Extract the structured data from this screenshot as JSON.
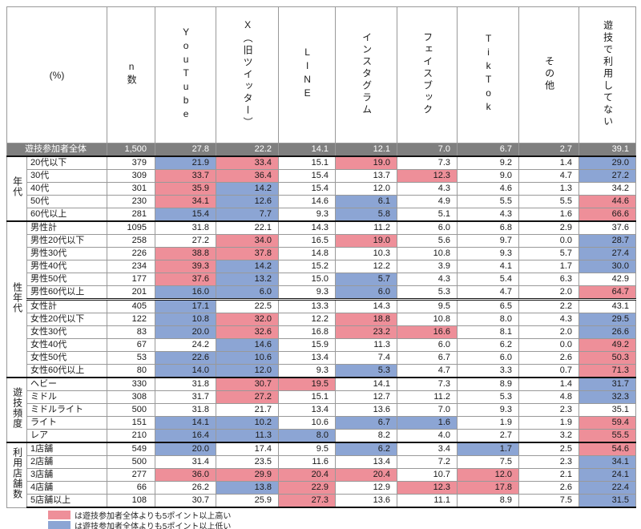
{
  "colors": {
    "higher_highlight": "#ee8f99",
    "lower_highlight": "#8ca5d4",
    "overall_row_bg": "#7f7f7f",
    "grid_line": "#999999",
    "section_line": "#111111"
  },
  "chart_data": {
    "type": "table",
    "unit_label": "(%)",
    "n_header": "n数",
    "columns": [
      "YouTube",
      "X（旧ツイッター）",
      "LINE",
      "インスタグラム",
      "フェイスブック",
      "TikTok",
      "その他",
      "遊技で利用してない"
    ],
    "overall": {
      "label": "遊技参加者全体",
      "n": "1,500",
      "values": [
        27.8,
        22.2,
        14.1,
        12.1,
        7.0,
        6.7,
        2.7,
        39.1
      ]
    },
    "sections": [
      {
        "group": "年代",
        "rows": [
          {
            "label": "20代以下",
            "n": "379",
            "values": [
              21.9,
              33.4,
              15.1,
              19.0,
              7.3,
              9.2,
              1.4,
              29.0
            ],
            "hl": [
              "l",
              "h",
              "",
              "h",
              "",
              "",
              "",
              "l"
            ]
          },
          {
            "label": "30代",
            "n": "309",
            "values": [
              33.7,
              36.4,
              15.4,
              13.7,
              12.3,
              9.0,
              4.7,
              27.2
            ],
            "hl": [
              "h",
              "h",
              "",
              "",
              "h",
              "",
              "",
              "l"
            ]
          },
          {
            "label": "40代",
            "n": "301",
            "values": [
              35.9,
              14.2,
              15.4,
              12.0,
              4.3,
              4.6,
              1.3,
              34.2
            ],
            "hl": [
              "h",
              "l",
              "",
              "",
              "",
              "",
              "",
              ""
            ]
          },
          {
            "label": "50代",
            "n": "230",
            "values": [
              34.1,
              12.6,
              14.6,
              6.1,
              4.9,
              5.5,
              5.5,
              44.6
            ],
            "hl": [
              "h",
              "l",
              "",
              "l",
              "",
              "",
              "",
              "h"
            ]
          },
          {
            "label": "60代以上",
            "n": "281",
            "values": [
              15.4,
              7.7,
              9.3,
              5.8,
              5.1,
              4.3,
              1.6,
              66.6
            ],
            "hl": [
              "l",
              "l",
              "",
              "l",
              "",
              "",
              "",
              "h"
            ]
          }
        ]
      },
      {
        "group": "性年代",
        "divider_before": 6,
        "rows": [
          {
            "label": "男性計",
            "n": "1095",
            "values": [
              31.8,
              22.1,
              14.3,
              11.2,
              6.0,
              6.8,
              2.9,
              37.6
            ],
            "hl": [
              "",
              "",
              "",
              "",
              "",
              "",
              "",
              ""
            ]
          },
          {
            "label": "男性20代以下",
            "n": "258",
            "values": [
              27.2,
              34.0,
              16.5,
              19.0,
              5.6,
              9.7,
              0.0,
              28.7
            ],
            "hl": [
              "",
              "h",
              "",
              "h",
              "",
              "",
              "",
              "l"
            ]
          },
          {
            "label": "男性30代",
            "n": "226",
            "values": [
              38.8,
              37.8,
              14.8,
              10.3,
              10.8,
              9.3,
              5.7,
              27.4
            ],
            "hl": [
              "h",
              "h",
              "",
              "",
              "",
              "",
              "",
              "l"
            ]
          },
          {
            "label": "男性40代",
            "n": "234",
            "values": [
              39.3,
              14.2,
              15.2,
              12.2,
              3.9,
              4.1,
              1.7,
              30.0
            ],
            "hl": [
              "h",
              "l",
              "",
              "",
              "",
              "",
              "",
              "l"
            ]
          },
          {
            "label": "男性50代",
            "n": "177",
            "values": [
              37.6,
              13.2,
              15.0,
              5.7,
              4.3,
              5.4,
              6.3,
              42.9
            ],
            "hl": [
              "h",
              "l",
              "",
              "l",
              "",
              "",
              "",
              ""
            ]
          },
          {
            "label": "男性60代以上",
            "n": "201",
            "values": [
              16.0,
              6.0,
              9.3,
              6.0,
              5.3,
              4.7,
              2.0,
              64.7
            ],
            "hl": [
              "l",
              "l",
              "",
              "l",
              "",
              "",
              "",
              "h"
            ]
          },
          {
            "label": "女性計",
            "n": "405",
            "values": [
              17.1,
              22.5,
              13.3,
              14.3,
              9.5,
              6.5,
              2.2,
              43.1
            ],
            "hl": [
              "l",
              "",
              "",
              "",
              "",
              "",
              "",
              ""
            ]
          },
          {
            "label": "女性20代以下",
            "n": "122",
            "values": [
              10.8,
              32.0,
              12.2,
              18.8,
              10.8,
              8.0,
              4.3,
              29.5
            ],
            "hl": [
              "l",
              "h",
              "",
              "h",
              "",
              "",
              "",
              "l"
            ]
          },
          {
            "label": "女性30代",
            "n": "83",
            "values": [
              20.0,
              32.6,
              16.8,
              23.2,
              16.6,
              8.1,
              2.0,
              26.6
            ],
            "hl": [
              "l",
              "h",
              "",
              "h",
              "h",
              "",
              "",
              "l"
            ]
          },
          {
            "label": "女性40代",
            "n": "67",
            "values": [
              24.2,
              14.6,
              15.9,
              11.3,
              6.0,
              6.2,
              0.0,
              49.2
            ],
            "hl": [
              "",
              "l",
              "",
              "",
              "",
              "",
              "",
              "h"
            ]
          },
          {
            "label": "女性50代",
            "n": "53",
            "values": [
              22.6,
              10.6,
              13.4,
              7.4,
              6.7,
              6.0,
              2.6,
              50.3
            ],
            "hl": [
              "l",
              "l",
              "",
              "",
              "",
              "",
              "",
              "h"
            ]
          },
          {
            "label": "女性60代以上",
            "n": "80",
            "values": [
              14.0,
              12.0,
              9.3,
              5.3,
              4.7,
              3.3,
              0.7,
              71.3
            ],
            "hl": [
              "l",
              "l",
              "",
              "l",
              "",
              "",
              "",
              "h"
            ]
          }
        ]
      },
      {
        "group": "遊技頻度",
        "rows": [
          {
            "label": "ヘビー",
            "n": "330",
            "values": [
              31.8,
              30.7,
              19.5,
              14.1,
              7.3,
              8.9,
              1.4,
              31.7
            ],
            "hl": [
              "",
              "h",
              "h",
              "",
              "",
              "",
              "",
              "l"
            ]
          },
          {
            "label": "ミドル",
            "n": "308",
            "values": [
              31.7,
              27.2,
              15.1,
              12.7,
              11.2,
              5.3,
              4.8,
              32.3
            ],
            "hl": [
              "",
              "h",
              "",
              "",
              "",
              "",
              "",
              "l"
            ]
          },
          {
            "label": "ミドルライト",
            "n": "500",
            "values": [
              31.8,
              21.7,
              13.4,
              13.6,
              7.0,
              9.3,
              2.3,
              35.1
            ],
            "hl": [
              "",
              "",
              "",
              "",
              "",
              "",
              "",
              ""
            ]
          },
          {
            "label": "ライト",
            "n": "151",
            "values": [
              14.1,
              10.2,
              10.6,
              6.7,
              1.6,
              1.9,
              1.9,
              59.4
            ],
            "hl": [
              "l",
              "l",
              "",
              "l",
              "l",
              "",
              "",
              "h"
            ]
          },
          {
            "label": "レア",
            "n": "210",
            "values": [
              16.4,
              11.3,
              8.0,
              8.2,
              4.0,
              2.7,
              3.2,
              55.5
            ],
            "hl": [
              "l",
              "l",
              "l",
              "",
              "",
              "",
              "",
              "h"
            ]
          }
        ]
      },
      {
        "group": "利用店舗数",
        "rows": [
          {
            "label": "1店舗",
            "n": "549",
            "values": [
              20.0,
              17.4,
              9.5,
              6.2,
              3.4,
              1.7,
              2.5,
              54.6
            ],
            "hl": [
              "l",
              "",
              "",
              "l",
              "",
              "l",
              "",
              "h"
            ]
          },
          {
            "label": "2店舗",
            "n": "500",
            "values": [
              31.4,
              23.5,
              11.6,
              13.4,
              7.2,
              7.5,
              2.3,
              34.1
            ],
            "hl": [
              "",
              "",
              "",
              "",
              "",
              "",
              "",
              "l"
            ]
          },
          {
            "label": "3店舗",
            "n": "277",
            "values": [
              36.0,
              29.9,
              20.4,
              20.4,
              10.7,
              12.0,
              2.1,
              24.1
            ],
            "hl": [
              "h",
              "h",
              "h",
              "h",
              "",
              "h",
              "",
              "l"
            ]
          },
          {
            "label": "4店舗",
            "n": "66",
            "values": [
              26.2,
              13.8,
              22.9,
              12.9,
              12.3,
              17.8,
              2.6,
              22.4
            ],
            "hl": [
              "",
              "l",
              "h",
              "",
              "h",
              "h",
              "",
              "l"
            ]
          },
          {
            "label": "5店舗以上",
            "n": "108",
            "values": [
              30.7,
              25.9,
              27.3,
              13.6,
              11.1,
              8.9,
              7.5,
              31.5
            ],
            "hl": [
              "",
              "",
              "h",
              "",
              "",
              "",
              "",
              "l"
            ]
          }
        ]
      }
    ]
  },
  "legend": {
    "high": {
      "color": "#ee8f99",
      "text": "は遊技参加者全体よりも5ポイント以上高い"
    },
    "low": {
      "color": "#8ca5d4",
      "text": "は遊技参加者全体よりも5ポイント以上低い"
    }
  }
}
